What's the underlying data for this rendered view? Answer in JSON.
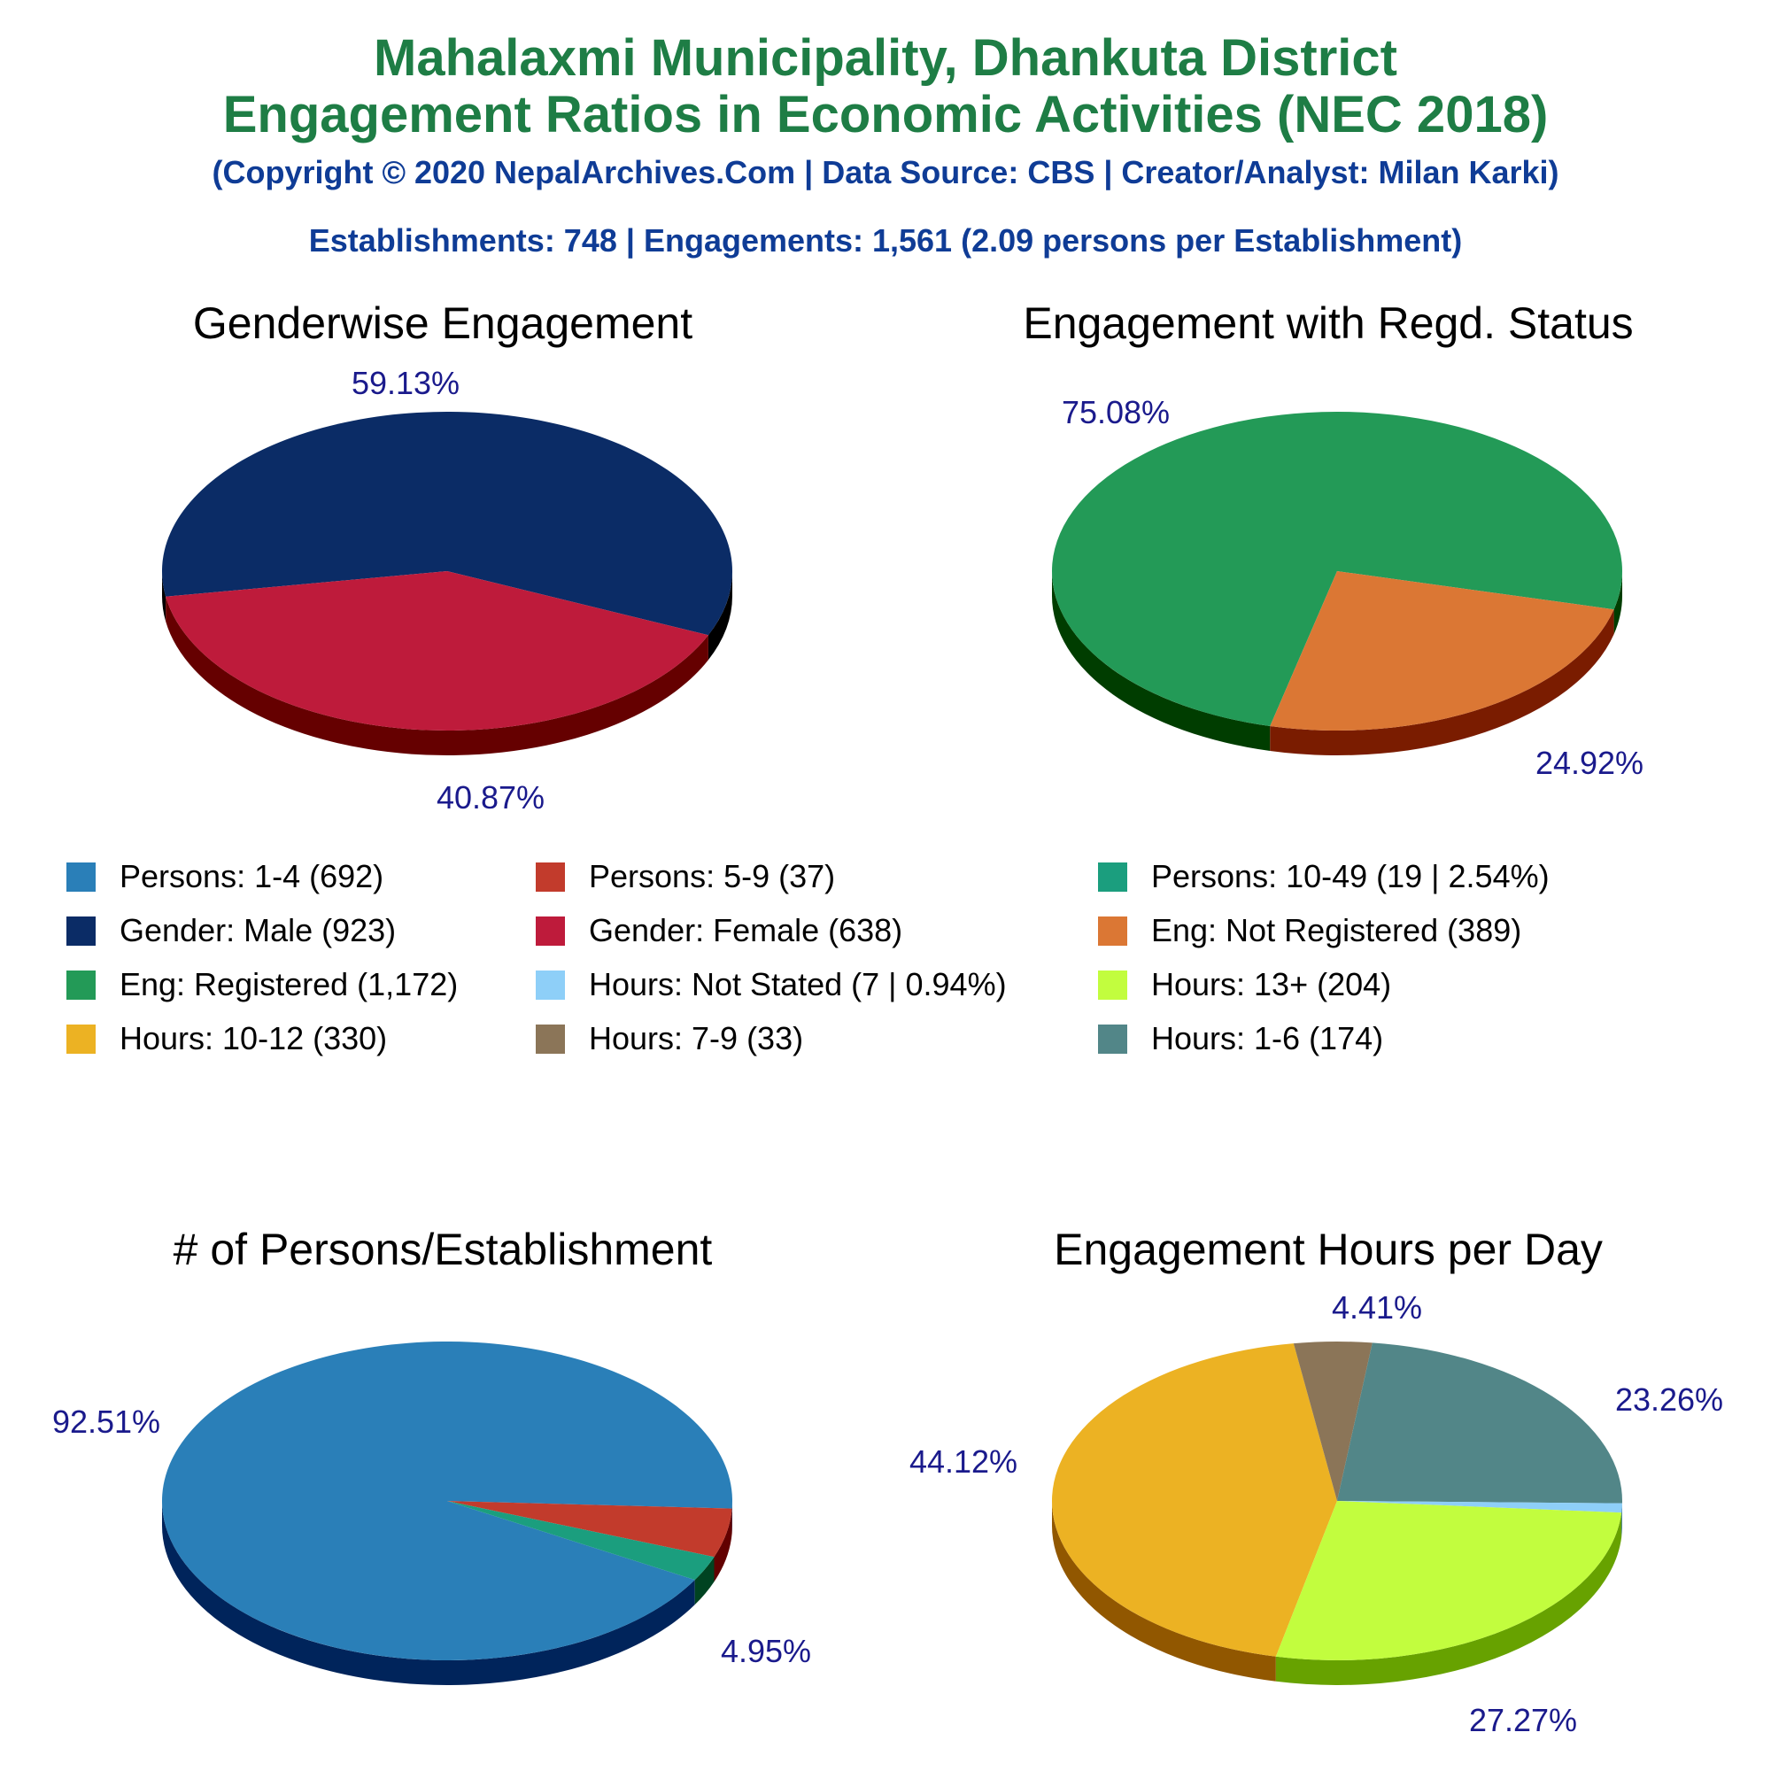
{
  "header": {
    "title_line1": "Mahalaxmi Municipality, Dhankuta District",
    "title_line2": "Engagement Ratios in Economic Activities (NEC 2018)",
    "copyright": "(Copyright © 2020 NepalArchives.Com | Data Source: CBS | Creator/Analyst: Milan Karki)",
    "stats": "Establishments: 748 | Engagements: 1,561 (2.09 persons per Establishment)"
  },
  "legend": [
    {
      "label": "Persons: 1-4 (692)",
      "color": "#2a7fb8"
    },
    {
      "label": "Persons: 5-9 (37)",
      "color": "#c23b2c"
    },
    {
      "label": "Persons: 10-49 (19 | 2.54%)",
      "color": "#1b9e7e"
    },
    {
      "label": "Gender: Male (923)",
      "color": "#0b2c66"
    },
    {
      "label": "Gender: Female (638)",
      "color": "#be1b3b"
    },
    {
      "label": "Eng: Not Registered (389)",
      "color": "#db7734"
    },
    {
      "label": "Eng: Registered (1,172)",
      "color": "#239a57"
    },
    {
      "label": "Hours: Not Stated (7 | 0.94%)",
      "color": "#8ecff8"
    },
    {
      "label": "Hours: 13+ (204)",
      "color": "#c2fd3e"
    },
    {
      "label": "Hours: 10-12 (330)",
      "color": "#ecb223"
    },
    {
      "label": "Hours: 7-9 (33)",
      "color": "#8b7558"
    },
    {
      "label": "Hours: 1-6 (174)",
      "color": "#528688"
    }
  ],
  "chart_data": [
    {
      "type": "pie",
      "title": "Genderwise Engagement",
      "slices": [
        {
          "name": "Gender: Male",
          "value": 923,
          "percent": 59.13,
          "label": "59.13%",
          "color": "#0b2c66",
          "side_color": "#000000"
        },
        {
          "name": "Gender: Female",
          "value": 638,
          "percent": 40.87,
          "label": "40.87%",
          "color": "#be1b3b",
          "side_color": "#650000"
        }
      ]
    },
    {
      "type": "pie",
      "title": "Engagement with Regd. Status",
      "slices": [
        {
          "name": "Eng: Registered",
          "value": 1172,
          "percent": 75.08,
          "label": "75.08%",
          "color": "#239a57",
          "side_color": "#003d00"
        },
        {
          "name": "Eng: Not Registered",
          "value": 389,
          "percent": 24.92,
          "label": "24.92%",
          "color": "#db7734",
          "side_color": "#7a1c00"
        }
      ]
    },
    {
      "type": "pie",
      "title": "# of Persons/Establishment",
      "slices": [
        {
          "name": "Persons: 1-4",
          "value": 692,
          "percent": 92.51,
          "label": "92.51%",
          "color": "#2a7fb8",
          "side_color": "#00245b"
        },
        {
          "name": "Persons: 5-9",
          "value": 37,
          "percent": 4.95,
          "label": "4.95%",
          "color": "#c23b2c",
          "side_color": "#620000"
        },
        {
          "name": "Persons: 10-49",
          "value": 19,
          "percent": 2.54,
          "label": "",
          "color": "#1b9e7e",
          "side_color": "#004321"
        }
      ]
    },
    {
      "type": "pie",
      "title": "Engagement Hours per Day",
      "slices": [
        {
          "name": "Hours: 10-12",
          "value": 330,
          "percent": 44.12,
          "label": "44.12%",
          "color": "#ecb223",
          "side_color": "#915700"
        },
        {
          "name": "Hours: 7-9",
          "value": 33,
          "percent": 4.41,
          "label": "4.41%",
          "color": "#8b7558",
          "side_color": "#301a00"
        },
        {
          "name": "Hours: 1-6",
          "value": 174,
          "percent": 23.26,
          "label": "23.26%",
          "color": "#528688",
          "side_color": "#002b2d"
        },
        {
          "name": "Hours: Not Stated",
          "value": 7,
          "percent": 0.94,
          "label": "",
          "color": "#8ecff8",
          "side_color": "#33749d"
        },
        {
          "name": "Hours: 13+",
          "value": 204,
          "percent": 27.27,
          "label": "27.27%",
          "color": "#c2fd3e",
          "side_color": "#67a200"
        }
      ]
    }
  ]
}
